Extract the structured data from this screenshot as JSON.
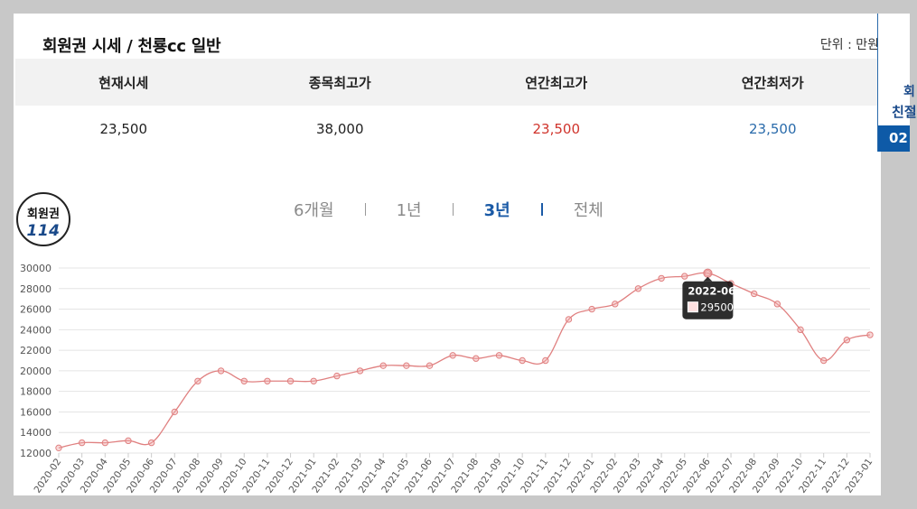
{
  "header": {
    "title": "회원권 시세 / 천룡cc 일반",
    "unit": "단위 : 만원"
  },
  "summary": {
    "headers": [
      "현재시세",
      "종목최고가",
      "연간최고가",
      "연간최저가"
    ],
    "values": [
      "23,500",
      "38,000",
      "23,500",
      "23,500"
    ]
  },
  "badge": {
    "line1": "회원권",
    "line2": "114"
  },
  "periods": [
    {
      "label": "6개월",
      "active": false
    },
    {
      "label": "1년",
      "active": false
    },
    {
      "label": "3년",
      "active": true
    },
    {
      "label": "전체",
      "active": false
    }
  ],
  "side_tab": {
    "line1": "회",
    "line2": "친절",
    "line3": "02"
  },
  "colors": {
    "line": "#e08080",
    "accent_blue": "#1a5aa6",
    "red": "#d0342c"
  },
  "chart_data": {
    "type": "line",
    "x": [
      "2020-02",
      "2020-03",
      "2020-04",
      "2020-05",
      "2020-06",
      "2020-07",
      "2020-08",
      "2020-09",
      "2020-10",
      "2020-11",
      "2020-12",
      "2021-01",
      "2021-02",
      "2021-03",
      "2021-04",
      "2021-05",
      "2021-06",
      "2021-07",
      "2021-08",
      "2021-09",
      "2021-10",
      "2021-11",
      "2021-12",
      "2022-01",
      "2022-02",
      "2022-03",
      "2022-04",
      "2022-05",
      "2022-06",
      "2022-07",
      "2022-08",
      "2022-09",
      "2022-10",
      "2022-11",
      "2022-12",
      "2023-01"
    ],
    "series": [
      {
        "values": [
          12500,
          13000,
          13000,
          13200,
          13000,
          16000,
          19000,
          20000,
          19000,
          19000,
          19000,
          19000,
          19500,
          20000,
          20500,
          20500,
          20500,
          21500,
          21200,
          21500,
          21000,
          21000,
          25000,
          26000,
          26500,
          28000,
          29000,
          29200,
          29500,
          28500,
          27500,
          26500,
          24000,
          21000,
          23000,
          23500
        ]
      }
    ],
    "ylim": [
      12000,
      30000
    ],
    "yticks": [
      12000,
      14000,
      16000,
      18000,
      20000,
      22000,
      24000,
      26000,
      28000,
      30000
    ],
    "grid": true,
    "tooltip": {
      "label": "2022-06",
      "value": "29500"
    }
  }
}
